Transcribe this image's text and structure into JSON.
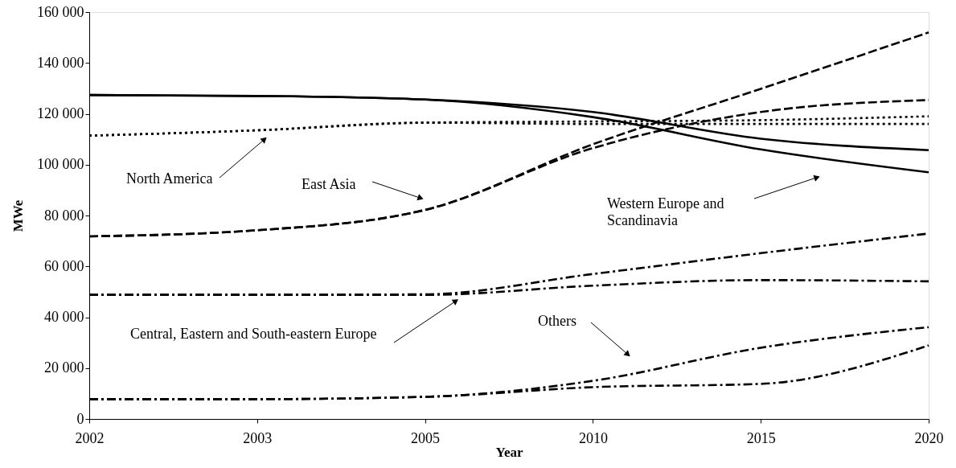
{
  "chart_data": {
    "type": "line",
    "xlabel": "Year",
    "ylabel": "MWe",
    "categories": [
      "2002",
      "2003",
      "2005",
      "2010",
      "2015",
      "2020"
    ],
    "ylim": [
      0,
      160000
    ],
    "yticks": [
      {
        "value": 0,
        "label": "0"
      },
      {
        "value": 20000,
        "label": "20 000"
      },
      {
        "value": 40000,
        "label": "40 000"
      },
      {
        "value": 60000,
        "label": "60 000"
      },
      {
        "value": 80000,
        "label": "80 000"
      },
      {
        "value": 100000,
        "label": "100 000"
      },
      {
        "value": 120000,
        "label": "120 000"
      },
      {
        "value": 140000,
        "label": "140 000"
      },
      {
        "value": 160000,
        "label": "160 000"
      }
    ],
    "grid": false,
    "series": [
      {
        "color": "#000000",
        "line_style": "solid",
        "values": [
          127400,
          127000,
          125600,
          120700,
          110200,
          105700
        ]
      },
      {
        "color": "#000000",
        "line_style": "solid",
        "values": [
          127400,
          127000,
          125600,
          118700,
          106000,
          97000
        ]
      },
      {
        "color": "#000000",
        "line_style": "dotted",
        "values": [
          111400,
          113500,
          116500,
          117000,
          117500,
          119000
        ]
      },
      {
        "color": "#000000",
        "line_style": "dotted",
        "values": [
          111400,
          113500,
          116500,
          116000,
          116000,
          116000
        ]
      },
      {
        "color": "#000000",
        "line_style": "dashed",
        "values": [
          71800,
          74200,
          82200,
          108000,
          129800,
          152000
        ]
      },
      {
        "color": "#000000",
        "line_style": "dashed",
        "values": [
          71800,
          74200,
          82200,
          106500,
          120700,
          125400
        ]
      },
      {
        "color": "#000000",
        "line_style": "dashdot",
        "values": [
          48800,
          48800,
          49000,
          57000,
          65200,
          72900
        ]
      },
      {
        "color": "#000000",
        "line_style": "dashdot",
        "values": [
          48800,
          48800,
          48800,
          52400,
          54600,
          54100
        ]
      },
      {
        "color": "#000000",
        "line_style": "dashdot",
        "values": [
          7800,
          7800,
          8700,
          15000,
          28000,
          36100
        ]
      },
      {
        "color": "#000000",
        "line_style": "dashdot",
        "values": [
          7800,
          7800,
          8700,
          12500,
          13800,
          28900
        ]
      }
    ],
    "annotations": [
      "North America",
      "East Asia",
      "Western Europe and Scandinavia",
      "Central, Eastern and South-eastern Europe",
      "Others"
    ]
  }
}
